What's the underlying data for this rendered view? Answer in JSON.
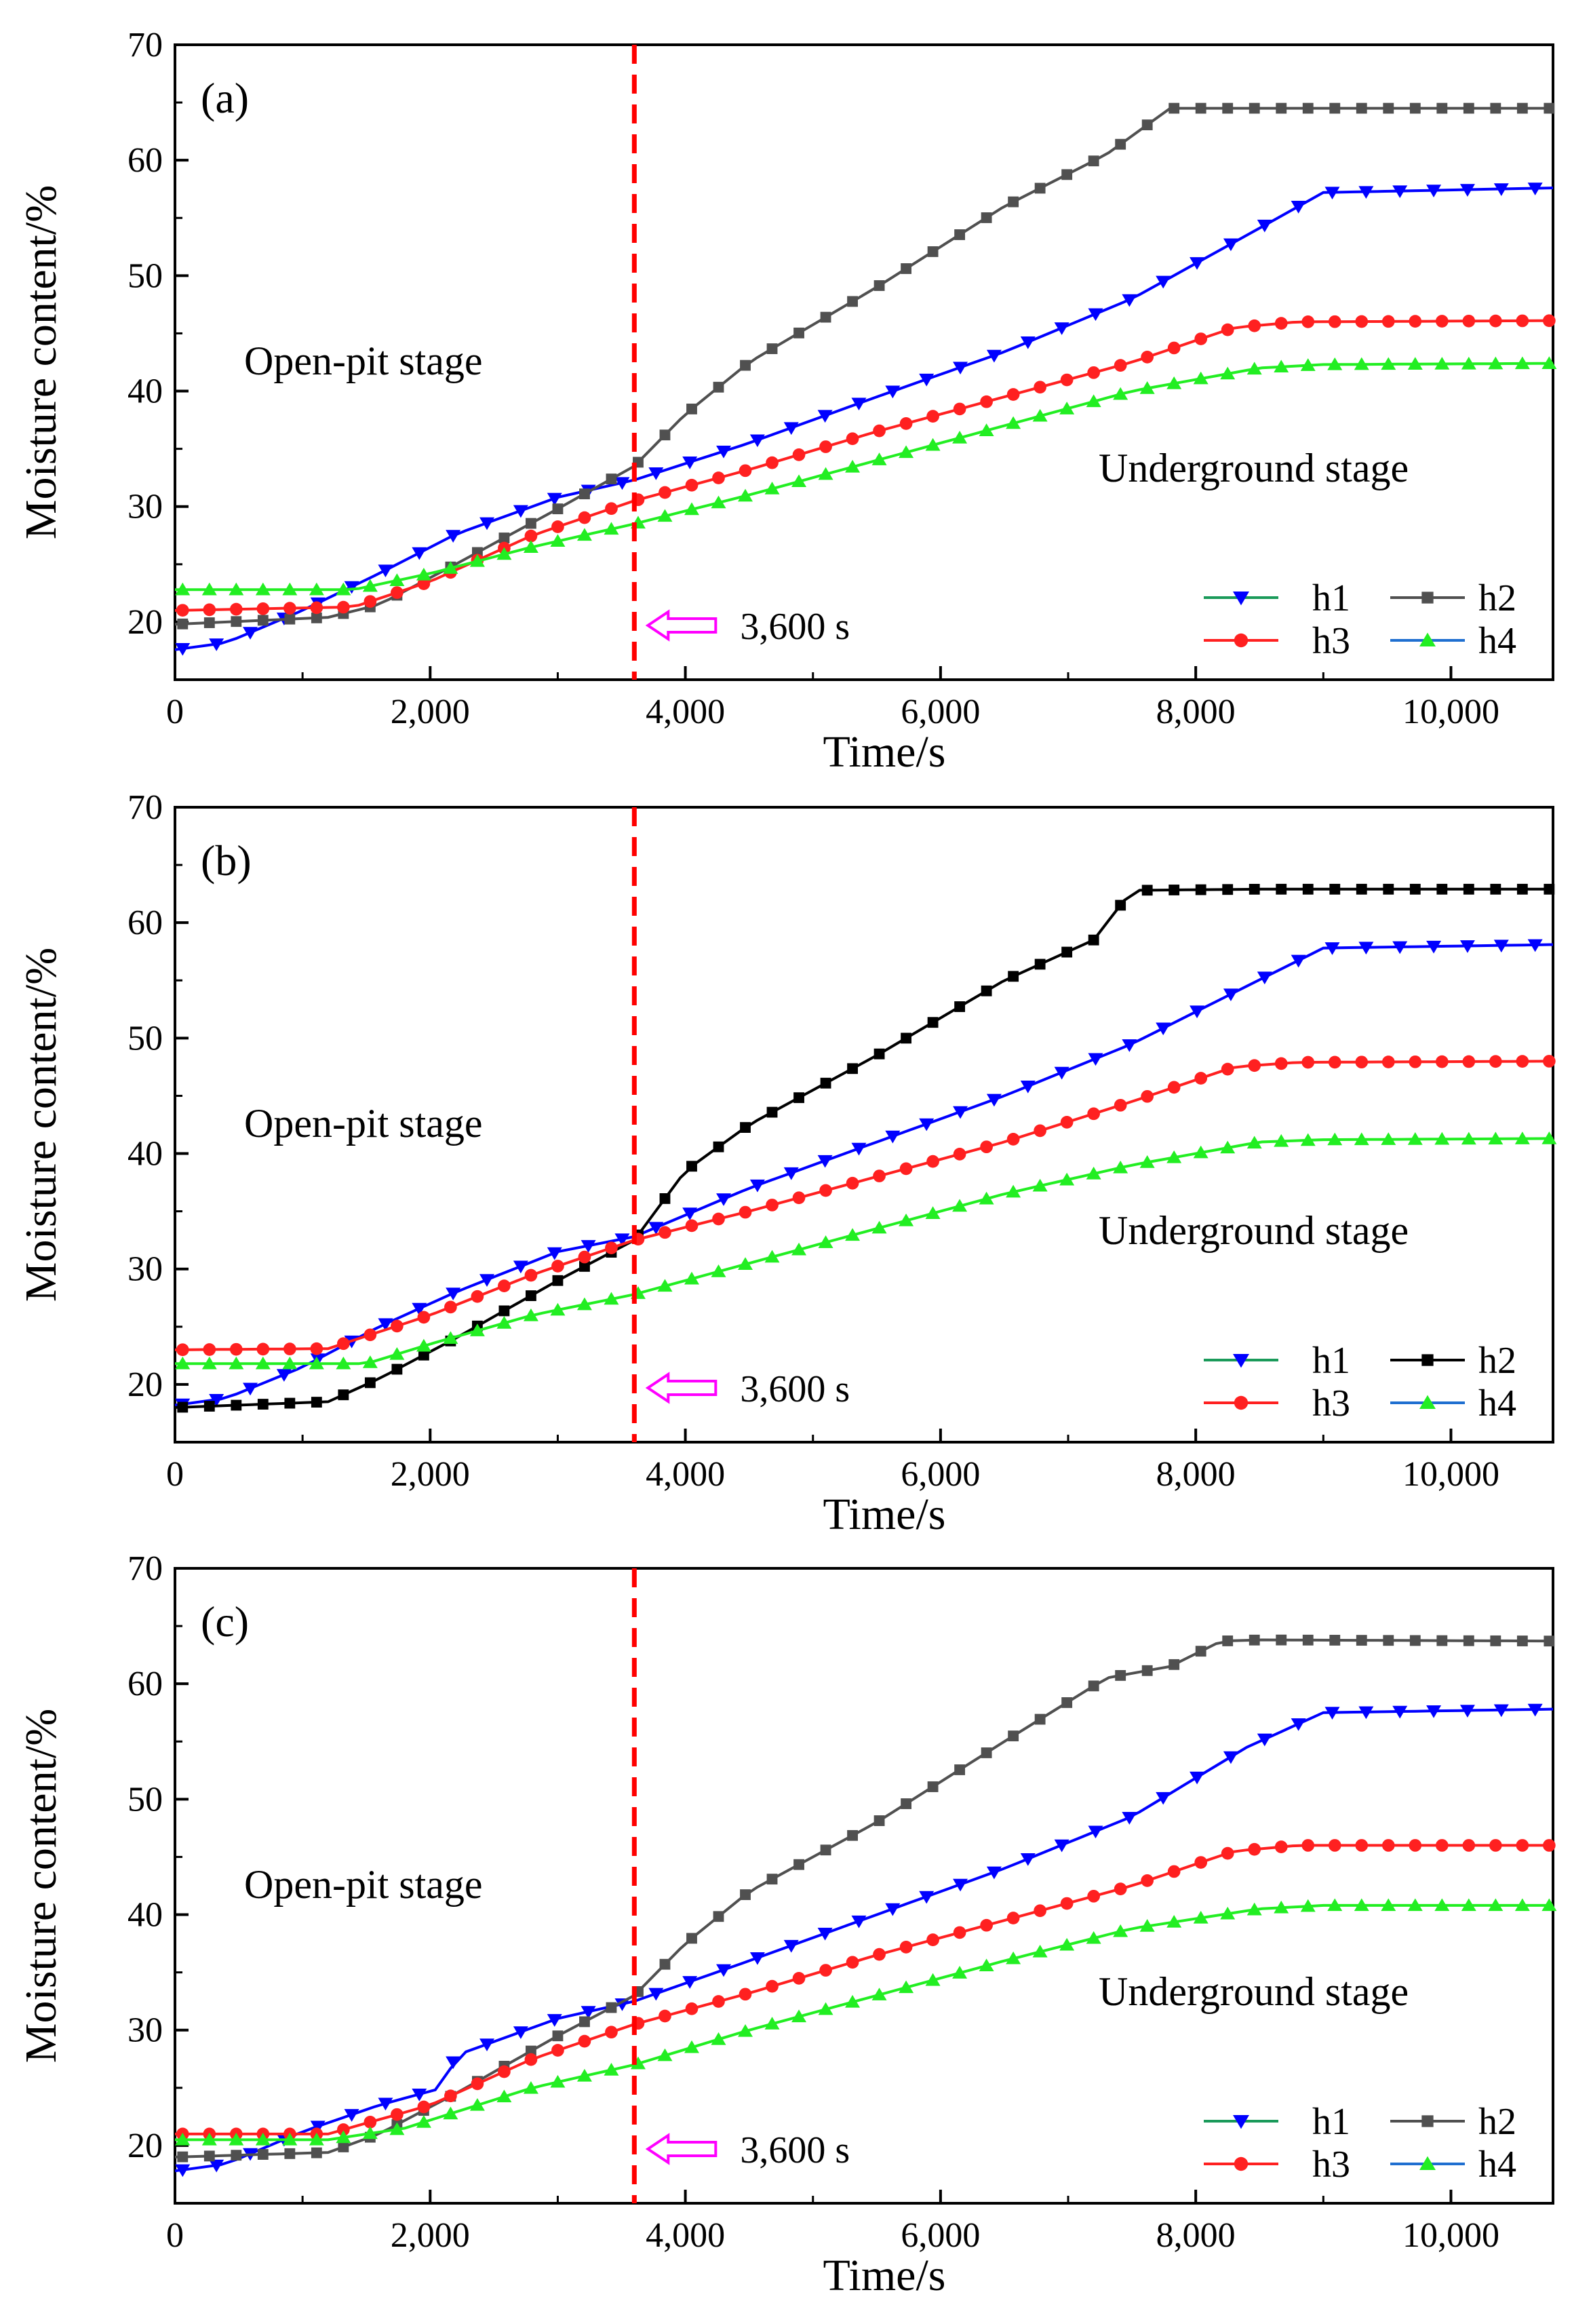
{
  "figure": {
    "colors": {
      "h1": "#0000ff",
      "h2_a": "#505050",
      "h2_b": "#000000",
      "h2_c": "#505050",
      "h3": "#ff2020",
      "h4": "#22ee22",
      "h1_line": "#1a9a5a",
      "h4_line": "#1f6fd0",
      "marker_line": "#ff0000",
      "arrow": "#ff00ff"
    }
  },
  "chart_data": [
    {
      "type": "line",
      "panel_label": "(a)",
      "xlabel": "Time/s",
      "ylabel": "Moisture content/%",
      "xlim": [
        0,
        10800
      ],
      "ylim": [
        15,
        70
      ],
      "xticks": [
        0,
        2000,
        4000,
        6000,
        8000,
        10000
      ],
      "xtick_labels": [
        "0",
        "2,000",
        "4,000",
        "6,000",
        "8,000",
        "10,000"
      ],
      "yticks": [
        20,
        30,
        40,
        50,
        60,
        70
      ],
      "ytick_labels": [
        "20",
        "30",
        "40",
        "50",
        "60",
        "70"
      ],
      "vline_x": 3600,
      "vline_label": "3,600 s",
      "annotations": [
        "Open-pit stage",
        "Underground stage"
      ],
      "legend": [
        "h1",
        "h2",
        "h3",
        "h4"
      ],
      "series": [
        {
          "name": "h1",
          "marker": "triangle-down",
          "x": [
            0,
            400,
            1000,
            1600,
            2200,
            3000,
            3600,
            4500,
            5500,
            6500,
            7500,
            8400,
            9000,
            10800
          ],
          "values": [
            17.6,
            18.2,
            21.0,
            24.2,
            27.6,
            30.8,
            32.3,
            35.5,
            39.5,
            43.4,
            48.0,
            53.5,
            57.2,
            57.6
          ]
        },
        {
          "name": "h2",
          "marker": "square",
          "x": [
            0,
            1200,
            1600,
            2200,
            3000,
            3600,
            4000,
            4500,
            5500,
            6500,
            7300,
            7800,
            8500,
            10800
          ],
          "values": [
            19.8,
            20.4,
            21.5,
            25.0,
            29.8,
            33.5,
            38.0,
            42.5,
            49.0,
            56.0,
            60.5,
            64.5,
            64.5,
            64.5
          ]
        },
        {
          "name": "h3",
          "marker": "circle",
          "x": [
            0,
            1400,
            2000,
            2800,
            3600,
            4500,
            5500,
            6500,
            7500,
            8300,
            8800,
            10800
          ],
          "values": [
            21.0,
            21.3,
            23.5,
            27.5,
            30.5,
            33.2,
            36.5,
            39.5,
            42.5,
            45.5,
            46.0,
            46.1
          ]
        },
        {
          "name": "h4",
          "marker": "triangle-up",
          "x": [
            0,
            1400,
            2000,
            2800,
            3600,
            4500,
            5500,
            6500,
            7500,
            8500,
            9000,
            10800
          ],
          "values": [
            22.8,
            22.8,
            24.2,
            26.5,
            28.5,
            31.0,
            34.0,
            37.0,
            40.0,
            42.0,
            42.3,
            42.4
          ]
        }
      ]
    },
    {
      "type": "line",
      "panel_label": "(b)",
      "xlabel": "Time/s",
      "ylabel": "Moisture content/%",
      "xlim": [
        0,
        10800
      ],
      "ylim": [
        15,
        70
      ],
      "xticks": [
        0,
        2000,
        4000,
        6000,
        8000,
        10000
      ],
      "xtick_labels": [
        "0",
        "2,000",
        "4,000",
        "6,000",
        "8,000",
        "10,000"
      ],
      "yticks": [
        20,
        30,
        40,
        50,
        60,
        70
      ],
      "ytick_labels": [
        "20",
        "30",
        "40",
        "50",
        "60",
        "70"
      ],
      "vline_x": 3600,
      "vline_label": "3,600 s",
      "annotations": [
        "Open-pit stage",
        "Underground stage"
      ],
      "legend": [
        "h1",
        "h2",
        "h3",
        "h4"
      ],
      "series": [
        {
          "name": "h1",
          "marker": "triangle-down",
          "x": [
            0,
            400,
            1000,
            1600,
            2200,
            3000,
            3600,
            4500,
            5500,
            6500,
            7500,
            8400,
            9000,
            10800
          ],
          "values": [
            18.2,
            18.8,
            21.5,
            25.0,
            28.0,
            31.5,
            32.8,
            37.0,
            41.0,
            45.0,
            49.5,
            54.5,
            57.8,
            58.1
          ]
        },
        {
          "name": "h2",
          "marker": "square",
          "x": [
            0,
            1200,
            1600,
            2200,
            3000,
            3600,
            4000,
            4500,
            5500,
            6500,
            7200,
            7500,
            8500,
            10800
          ],
          "values": [
            18.0,
            18.5,
            20.5,
            24.0,
            29.0,
            32.5,
            38.5,
            42.5,
            48.5,
            55.0,
            58.5,
            62.8,
            62.9,
            62.9
          ]
        },
        {
          "name": "h3",
          "marker": "circle",
          "x": [
            0,
            1200,
            2000,
            2800,
            3600,
            4500,
            5500,
            6500,
            7500,
            8300,
            8800,
            10800
          ],
          "values": [
            23.0,
            23.1,
            26.0,
            29.5,
            32.5,
            35.0,
            38.0,
            41.0,
            44.5,
            47.5,
            47.9,
            48.0
          ]
        },
        {
          "name": "h4",
          "marker": "triangle-up",
          "x": [
            0,
            1500,
            2000,
            2800,
            3600,
            4500,
            5500,
            6500,
            7500,
            8500,
            9000,
            10800
          ],
          "values": [
            21.8,
            21.8,
            23.5,
            26.0,
            27.8,
            30.5,
            33.5,
            36.5,
            39.0,
            41.0,
            41.2,
            41.3
          ]
        }
      ]
    },
    {
      "type": "line",
      "panel_label": "(c)",
      "xlabel": "Time/s",
      "ylabel": "Moisture content/%",
      "xlim": [
        0,
        10800
      ],
      "ylim": [
        15,
        70
      ],
      "xticks": [
        0,
        2000,
        4000,
        6000,
        8000,
        10000
      ],
      "xtick_labels": [
        "0",
        "2,000",
        "4,000",
        "6,000",
        "8,000",
        "10,000"
      ],
      "yticks": [
        20,
        30,
        40,
        50,
        60,
        70
      ],
      "ytick_labels": [
        "20",
        "30",
        "40",
        "50",
        "60",
        "70"
      ],
      "vline_x": 3600,
      "vline_label": "3,600 s",
      "annotations": [
        "Open-pit stage",
        "Underground stage"
      ],
      "legend": [
        "h1",
        "h2",
        "h3",
        "h4"
      ],
      "series": [
        {
          "name": "h1",
          "marker": "triangle-down",
          "x": [
            0,
            400,
            1000,
            1600,
            2100,
            2200,
            3000,
            3600,
            4500,
            5500,
            6500,
            7500,
            8400,
            9000,
            10800
          ],
          "values": [
            17.8,
            18.4,
            21.2,
            23.5,
            25.0,
            27.8,
            31.0,
            32.5,
            36.0,
            40.0,
            44.0,
            48.5,
            54.5,
            57.5,
            57.8
          ]
        },
        {
          "name": "h2",
          "marker": "square",
          "x": [
            0,
            1200,
            1600,
            2200,
            3000,
            3600,
            4000,
            4500,
            5500,
            6500,
            7300,
            7800,
            8200,
            8500,
            10800
          ],
          "values": [
            19.0,
            19.4,
            21.0,
            24.5,
            29.5,
            33.0,
            37.5,
            42.0,
            48.0,
            55.0,
            60.5,
            61.5,
            63.7,
            63.8,
            63.7
          ]
        },
        {
          "name": "h3",
          "marker": "circle",
          "x": [
            0,
            1200,
            2000,
            2800,
            3600,
            4500,
            5500,
            6500,
            7500,
            8300,
            8800,
            10800
          ],
          "values": [
            21.0,
            21.0,
            23.5,
            27.5,
            30.5,
            33.2,
            36.5,
            39.5,
            42.5,
            45.5,
            46.0,
            46.0
          ]
        },
        {
          "name": "h4",
          "marker": "triangle-up",
          "x": [
            0,
            1200,
            1800,
            2800,
            3600,
            4500,
            5500,
            6500,
            7500,
            8500,
            9000,
            10800
          ],
          "values": [
            20.5,
            20.5,
            21.5,
            25.0,
            27.0,
            30.0,
            33.0,
            36.0,
            38.8,
            40.5,
            40.8,
            40.8
          ]
        }
      ]
    }
  ]
}
